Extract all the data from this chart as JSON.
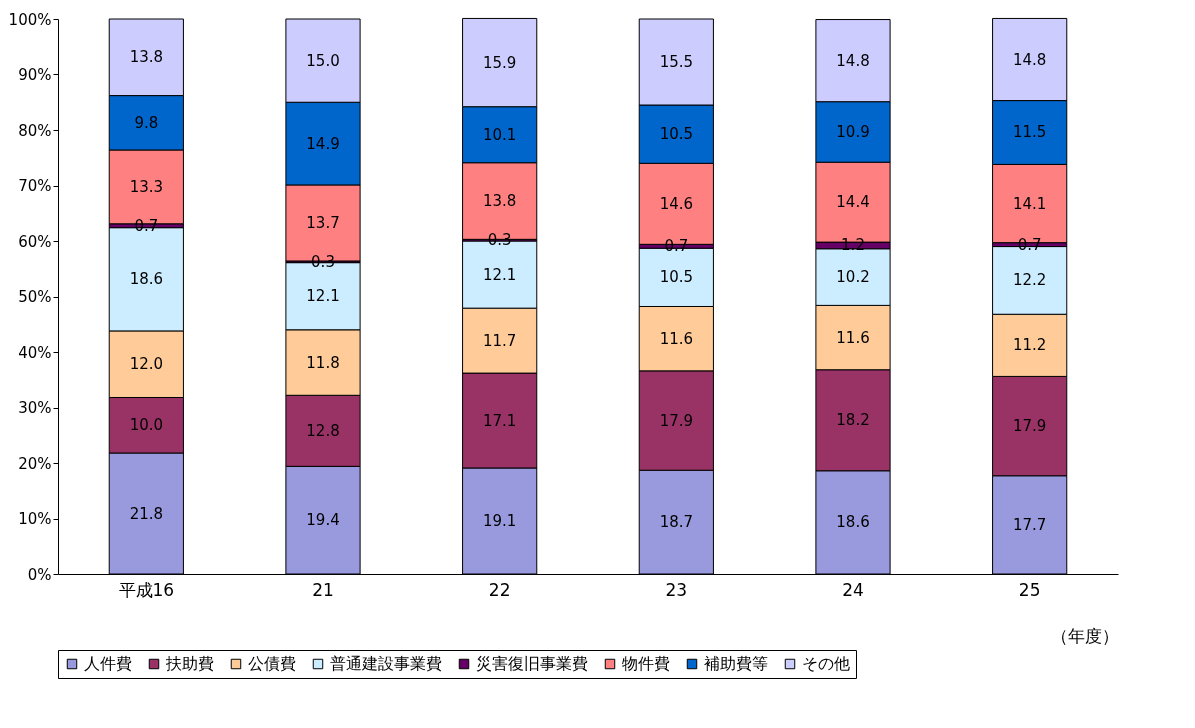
{
  "chart_data": {
    "type": "bar",
    "stacked": true,
    "categories": [
      "平成16",
      "21",
      "22",
      "23",
      "24",
      "25"
    ],
    "series": [
      {
        "name": "人件費",
        "color": "#9999dd",
        "values": [
          21.8,
          19.4,
          19.1,
          18.7,
          18.6,
          17.7
        ],
        "value_labels": [
          "21.8",
          "19.4",
          "19.1",
          "18.7",
          "18.6",
          "17.7"
        ]
      },
      {
        "name": "扶助費",
        "color": "#993366",
        "values": [
          10.0,
          12.8,
          17.1,
          17.9,
          18.2,
          17.9
        ],
        "value_labels": [
          "10.0",
          "12.8",
          "17.1",
          "17.9",
          "18.2",
          "17.9"
        ]
      },
      {
        "name": "公債費",
        "color": "#ffcc99",
        "values": [
          12.0,
          11.8,
          11.7,
          11.6,
          11.6,
          11.2
        ],
        "value_labels": [
          "12.0",
          "11.8",
          "11.7",
          "11.6",
          "11.6",
          "11.2"
        ]
      },
      {
        "name": "普通建設事業費",
        "color": "#ccecff",
        "values": [
          18.6,
          12.1,
          12.1,
          10.5,
          10.2,
          12.2
        ],
        "value_labels": [
          "18.6",
          "12.1",
          "12.1",
          "10.5",
          "10.2",
          "12.2"
        ]
      },
      {
        "name": "災害復旧事業費",
        "color": "#660066",
        "values": [
          0.7,
          0.3,
          0.3,
          0.7,
          1.2,
          0.7
        ],
        "value_labels": [
          "0.7",
          "0.3",
          "0.3",
          "0.7",
          "1.2",
          "0.7"
        ]
      },
      {
        "name": "物件費",
        "color": "#ff8080",
        "values": [
          13.3,
          13.7,
          13.8,
          14.6,
          14.4,
          14.1
        ],
        "value_labels": [
          "13.3",
          "13.7",
          "13.8",
          "14.6",
          "14.4",
          "14.1"
        ]
      },
      {
        "name": "補助費等",
        "color": "#0066cc",
        "values": [
          9.8,
          14.9,
          10.1,
          10.5,
          10.9,
          11.5
        ],
        "value_labels": [
          "9.8",
          "14.9",
          "10.1",
          "10.5",
          "10.9",
          "11.5"
        ]
      },
      {
        "name": "その他",
        "color": "#ccccff",
        "values": [
          13.8,
          15.0,
          15.9,
          15.5,
          14.8,
          14.8
        ],
        "value_labels": [
          "13.8",
          "15.0",
          "15.9",
          "15.5",
          "14.8",
          "14.8"
        ]
      }
    ],
    "xlabel": "（年度）",
    "ylim": [
      0,
      100
    ],
    "yticks": [
      {
        "value": 0,
        "label": "0%"
      },
      {
        "value": 10,
        "label": "10%"
      },
      {
        "value": 20,
        "label": "20%"
      },
      {
        "value": 30,
        "label": "30%"
      },
      {
        "value": 40,
        "label": "40%"
      },
      {
        "value": 50,
        "label": "50%"
      },
      {
        "value": 60,
        "label": "60%"
      },
      {
        "value": 70,
        "label": "70%"
      },
      {
        "value": 80,
        "label": "80%"
      },
      {
        "value": 90,
        "label": "90%"
      },
      {
        "value": 100,
        "label": "100%"
      }
    ],
    "grid": false,
    "legend": "bottom"
  }
}
